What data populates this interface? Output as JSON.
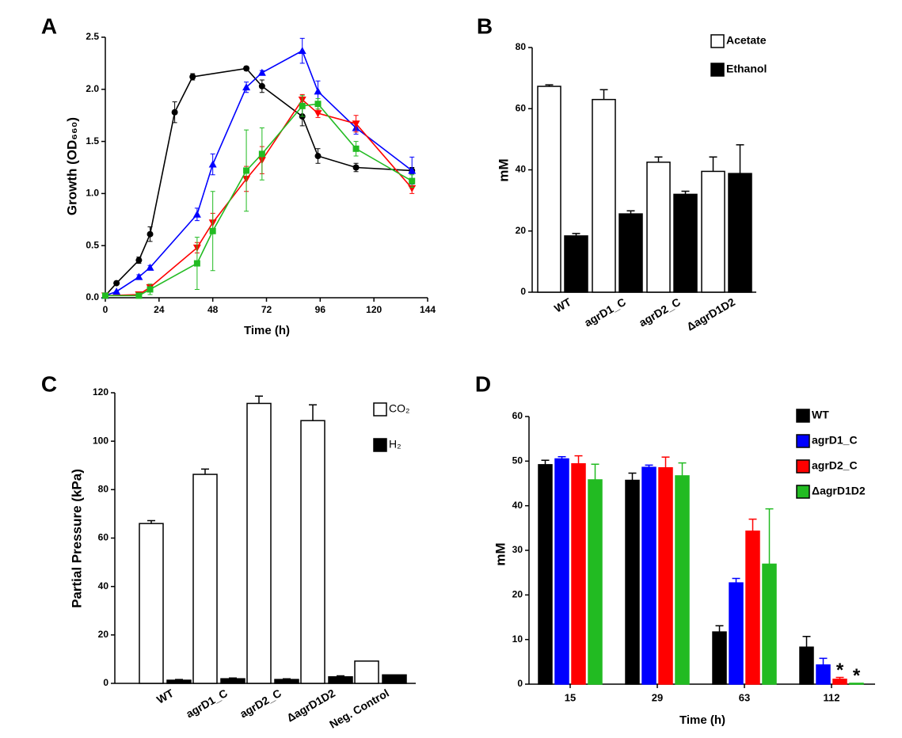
{
  "chart_data": [
    {
      "type": "line",
      "panel": "A",
      "xlabel": "Time (h)",
      "ylabel": "Growth (OD₆₆₀)",
      "xlim": [
        0,
        144
      ],
      "xticks": [
        0,
        24,
        48,
        72,
        96,
        120,
        144
      ],
      "ylim": [
        0,
        2.5
      ],
      "yticks": [
        {
          "value": 0,
          "label": "0.0"
        },
        0.5,
        {
          "value": 1,
          "label": "1.0"
        },
        1.5,
        {
          "value": 2,
          "label": "2.0"
        },
        2.5
      ],
      "series": [
        {
          "color": "#000000",
          "marker": "circle",
          "x": [
            0,
            5,
            15,
            20,
            31,
            39,
            63,
            70,
            88,
            95,
            112,
            137
          ],
          "values": [
            0.02,
            0.14,
            0.36,
            0.61,
            1.78,
            2.12,
            2.2,
            2.03,
            1.74,
            1.36,
            1.25,
            1.22
          ],
          "errors": [
            0,
            0,
            0.03,
            0.07,
            0.1,
            0.03,
            0.02,
            0.06,
            0.09,
            0.07,
            0.04,
            0.03
          ]
        },
        {
          "color": "#0000ff",
          "marker": "triangle",
          "x": [
            0,
            5,
            15,
            20,
            41,
            48,
            63,
            70,
            88,
            95,
            112,
            137
          ],
          "values": [
            0.02,
            0.06,
            0.2,
            0.29,
            0.8,
            1.28,
            2.02,
            2.16,
            2.37,
            1.98,
            1.63,
            1.22
          ],
          "errors": [
            0,
            0,
            0.02,
            0.02,
            0.06,
            0.1,
            0.05,
            0.02,
            0.12,
            0.1,
            0.06,
            0.13
          ]
        },
        {
          "color": "#ff0000",
          "marker": "triangle-down",
          "x": [
            0,
            15,
            20,
            41,
            48,
            63,
            70,
            88,
            95,
            112,
            137
          ],
          "values": [
            0.02,
            0.03,
            0.1,
            0.48,
            0.72,
            1.14,
            1.32,
            1.9,
            1.77,
            1.67,
            1.05
          ],
          "errors": [
            0,
            0,
            0.03,
            0.05,
            0.09,
            0.12,
            0.13,
            0.05,
            0.04,
            0.08,
            0.05
          ]
        },
        {
          "color": "#22bb22",
          "marker": "square",
          "x": [
            0,
            15,
            20,
            41,
            48,
            63,
            70,
            88,
            95,
            112,
            137
          ],
          "values": [
            0.02,
            0.02,
            0.08,
            0.33,
            0.64,
            1.22,
            1.38,
            1.84,
            1.86,
            1.43,
            1.12
          ],
          "errors": [
            0,
            0,
            0.05,
            0.25,
            0.38,
            0.39,
            0.25,
            0.1,
            0.05,
            0.07,
            0.06
          ]
        }
      ]
    },
    {
      "type": "bar",
      "panel": "B",
      "ylabel": "mM",
      "categories": [
        "WT",
        "agrD1_C",
        "agrD2_C",
        "ΔagrD1D2"
      ],
      "ylim": [
        0,
        80
      ],
      "yticks": [
        0,
        20,
        40,
        60,
        80
      ],
      "series": [
        {
          "name": "Acetate",
          "color": "#ffffff",
          "values": [
            67.3,
            63,
            42.5,
            39.5
          ],
          "errors": [
            0.5,
            3.2,
            1.7,
            4.7
          ]
        },
        {
          "name": "Ethanol",
          "color": "#000000",
          "values": [
            18.4,
            25.6,
            32,
            38.8
          ],
          "errors": [
            0.8,
            1,
            1,
            9.4
          ]
        }
      ]
    },
    {
      "type": "bar",
      "panel": "C",
      "ylabel": "Partial Pressure (kPa)",
      "categories": [
        "WT",
        "agrD1_C",
        "agrD2_C",
        "ΔagrD1D2",
        "Neg. Control"
      ],
      "ylim": [
        0,
        120
      ],
      "yticks": [
        0,
        20,
        40,
        60,
        80,
        100,
        120
      ],
      "series": [
        {
          "name": "CO₂",
          "color": "#ffffff",
          "values": [
            66,
            86.3,
            115.6,
            108.5,
            9.2
          ],
          "errors": [
            1.2,
            2.2,
            3,
            6.5,
            0
          ]
        },
        {
          "name": "H₂",
          "color": "#000000",
          "values": [
            1.3,
            1.9,
            1.6,
            2.7,
            3.5
          ],
          "errors": [
            0.3,
            0.3,
            0.3,
            0.4,
            0
          ]
        }
      ]
    },
    {
      "type": "bar",
      "panel": "D",
      "xlabel": "Time (h)",
      "ylabel": "mM",
      "categories": [
        "15",
        "29",
        "63",
        "112"
      ],
      "ylim": [
        0,
        60
      ],
      "yticks": [
        0,
        10,
        20,
        30,
        40,
        50,
        60
      ],
      "annotations": [
        "*",
        "*"
      ],
      "series": [
        {
          "name": "WT",
          "color": "#000000",
          "values": [
            49.2,
            45.7,
            11.7,
            8.3
          ],
          "errors": [
            1,
            1.6,
            1.4,
            2.4
          ]
        },
        {
          "name": "agrD1_C",
          "color": "#0000ff",
          "values": [
            50.5,
            48.6,
            22.7,
            4.3
          ],
          "errors": [
            0.5,
            0.5,
            1,
            1.5
          ]
        },
        {
          "name": "agrD2_C",
          "color": "#ff0000",
          "values": [
            49.4,
            48.5,
            34.3,
            1.1
          ],
          "errors": [
            1.8,
            2.4,
            2.7,
            0.4
          ]
        },
        {
          "name": "ΔagrD1D2",
          "color": "#22bb22",
          "values": [
            45.8,
            46.7,
            26.9,
            0.2
          ],
          "errors": [
            3.5,
            2.9,
            12.4,
            0
          ]
        }
      ]
    }
  ]
}
